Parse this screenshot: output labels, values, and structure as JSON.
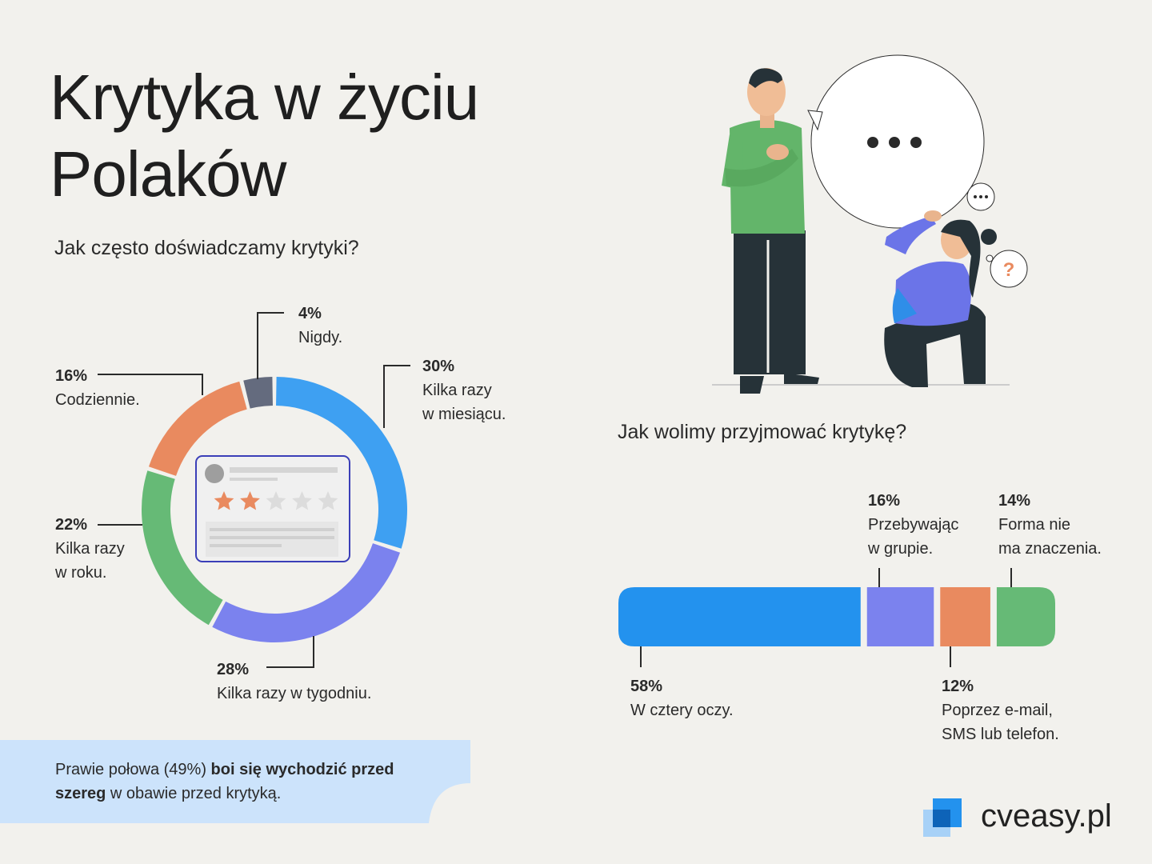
{
  "title_line1": "Krytyka w życiu",
  "title_line2": "Polaków",
  "colors": {
    "blue": "#3ea0f2",
    "purple": "#7b82ee",
    "green": "#66ba76",
    "orange": "#e98a5f",
    "slate": "#646b7e",
    "bar_blue": "#2392ee",
    "note_bg": "#cce3fb"
  },
  "donut": {
    "question": "Jak często doświadczamy krytyki?",
    "labels": [
      {
        "pct": "30%",
        "lines": [
          "Kilka razy",
          "w miesiącu."
        ]
      },
      {
        "pct": "28%",
        "lines": [
          "Kilka razy w tygodniu."
        ]
      },
      {
        "pct": "22%",
        "lines": [
          "Kilka razy",
          "w roku."
        ]
      },
      {
        "pct": "16%",
        "lines": [
          "Codziennie."
        ]
      },
      {
        "pct": "4%",
        "lines": [
          "Nigdy."
        ]
      }
    ]
  },
  "bar": {
    "question": "Jak wolimy przyjmować krytykę?",
    "labels": [
      {
        "pct": "58%",
        "lines": [
          "W cztery oczy."
        ]
      },
      {
        "pct": "16%",
        "lines": [
          "Przebywając",
          "w grupie."
        ]
      },
      {
        "pct": "12%",
        "lines": [
          "Poprzez e-mail,",
          "SMS lub telefon."
        ]
      },
      {
        "pct": "14%",
        "lines": [
          "Forma nie",
          "ma znaczenia."
        ]
      }
    ]
  },
  "chart_data": [
    {
      "type": "pie",
      "title": "Jak często doświadczamy krytyki?",
      "categories": [
        "Kilka razy w miesiącu.",
        "Kilka razy w tygodniu.",
        "Kilka razy w roku.",
        "Codziennie.",
        "Nigdy."
      ],
      "values": [
        30,
        28,
        22,
        16,
        4
      ],
      "colors": [
        "#3ea0f2",
        "#7b82ee",
        "#66ba76",
        "#e98a5f",
        "#646b7e"
      ]
    },
    {
      "type": "bar",
      "title": "Jak wolimy przyjmować krytykę?",
      "categories": [
        "W cztery oczy.",
        "Przebywając w grupie.",
        "Poprzez e-mail, SMS lub telefon.",
        "Forma nie ma znaczenia."
      ],
      "values": [
        58,
        16,
        12,
        14
      ],
      "colors": [
        "#2392ee",
        "#7b82ee",
        "#e98a5f",
        "#66ba76"
      ]
    }
  ],
  "note": {
    "part1": "Prawie połowa (49%) ",
    "bold1": "boi się wychodzić przed szereg",
    "part2": " w obawie przed krytyką."
  },
  "logo": "cveasy.pl"
}
